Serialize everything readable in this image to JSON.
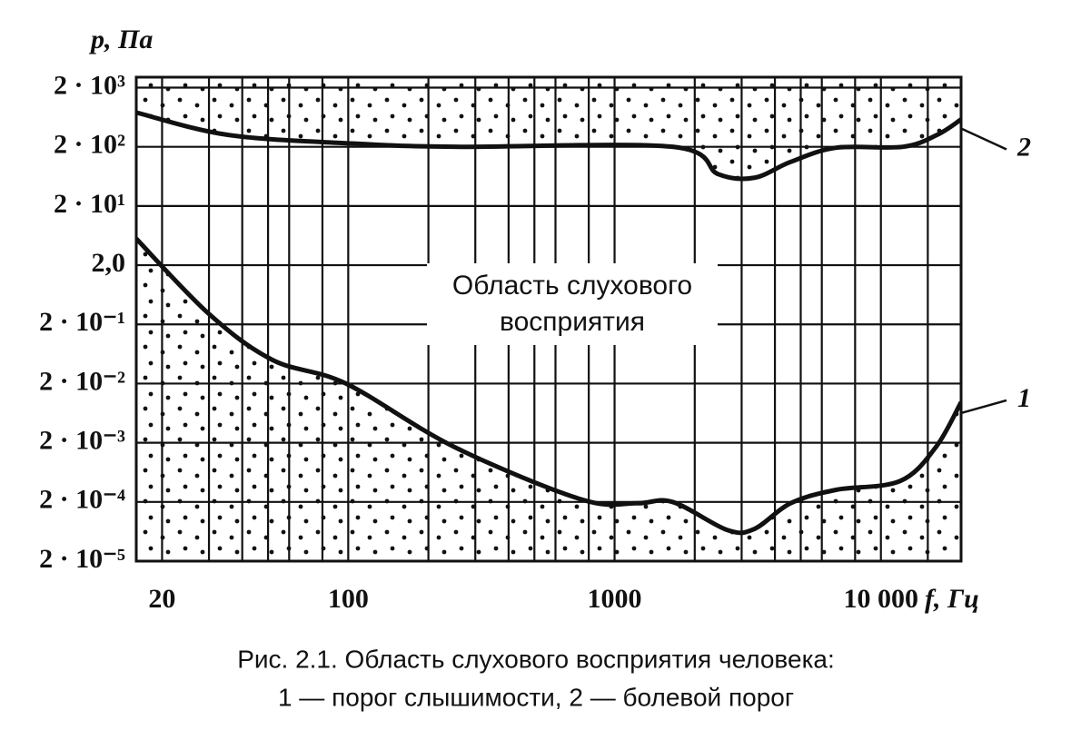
{
  "chart_data": {
    "type": "line",
    "ylabel": "p, Па",
    "xlabel": "f, Гц",
    "annotation": [
      "Область слухового",
      "восприятия"
    ],
    "caption": [
      "Рис. 2.1. Область слухового восприятия человека:",
      "1 — порог слышимости, 2 — болевой порог"
    ],
    "log_x": true,
    "log_y": true,
    "grid": true,
    "xlim": [
      16,
      20000
    ],
    "ylim": [
      2e-05,
      3000
    ],
    "xticks": [
      20,
      100,
      1000,
      {
        "value": 10000,
        "label": "10 000"
      }
    ],
    "xgrid": [
      20,
      30,
      40,
      50,
      60,
      80,
      100,
      200,
      300,
      400,
      500,
      600,
      800,
      1000,
      2000,
      3000,
      4000,
      5000,
      6000,
      8000,
      10000,
      15000
    ],
    "yticks": [
      {
        "value": 2000,
        "label": "2 · 10³"
      },
      {
        "value": 200,
        "label": "2 · 10²"
      },
      {
        "value": 20,
        "label": "2 · 10¹"
      },
      {
        "value": 2,
        "label": "2,0"
      },
      {
        "value": 0.2,
        "label": "2 · 10⁻¹"
      },
      {
        "value": 0.02,
        "label": "2 · 10⁻²"
      },
      {
        "value": 0.002,
        "label": "2 · 10⁻³"
      },
      {
        "value": 0.0002,
        "label": "2 · 10⁻⁴"
      },
      {
        "value": 2e-05,
        "label": "2 · 10⁻⁵"
      }
    ],
    "series": [
      {
        "name": "1",
        "color": "#111111",
        "x": [
          16,
          30,
          52,
          98,
          250,
          752,
          1210,
          1650,
          2650,
          3350,
          4580,
          6790,
          11800,
          16100,
          20000
        ],
        "values": [
          5.6,
          0.3,
          0.05,
          0.02,
          0.0017,
          0.00022,
          0.00019,
          0.0002,
          6.7e-05,
          7e-05,
          0.00019,
          0.00032,
          0.00045,
          0.0017,
          0.0097
        ]
      },
      {
        "name": "2",
        "color": "#111111",
        "x": [
          16,
          35,
          98,
          250,
          1650,
          2450,
          3350,
          4580,
          6790,
          12100,
          16300,
          20000
        ],
        "values": [
          760,
          320,
          230,
          200,
          200,
          69,
          60,
          111,
          193,
          200,
          320,
          580
        ]
      }
    ]
  }
}
